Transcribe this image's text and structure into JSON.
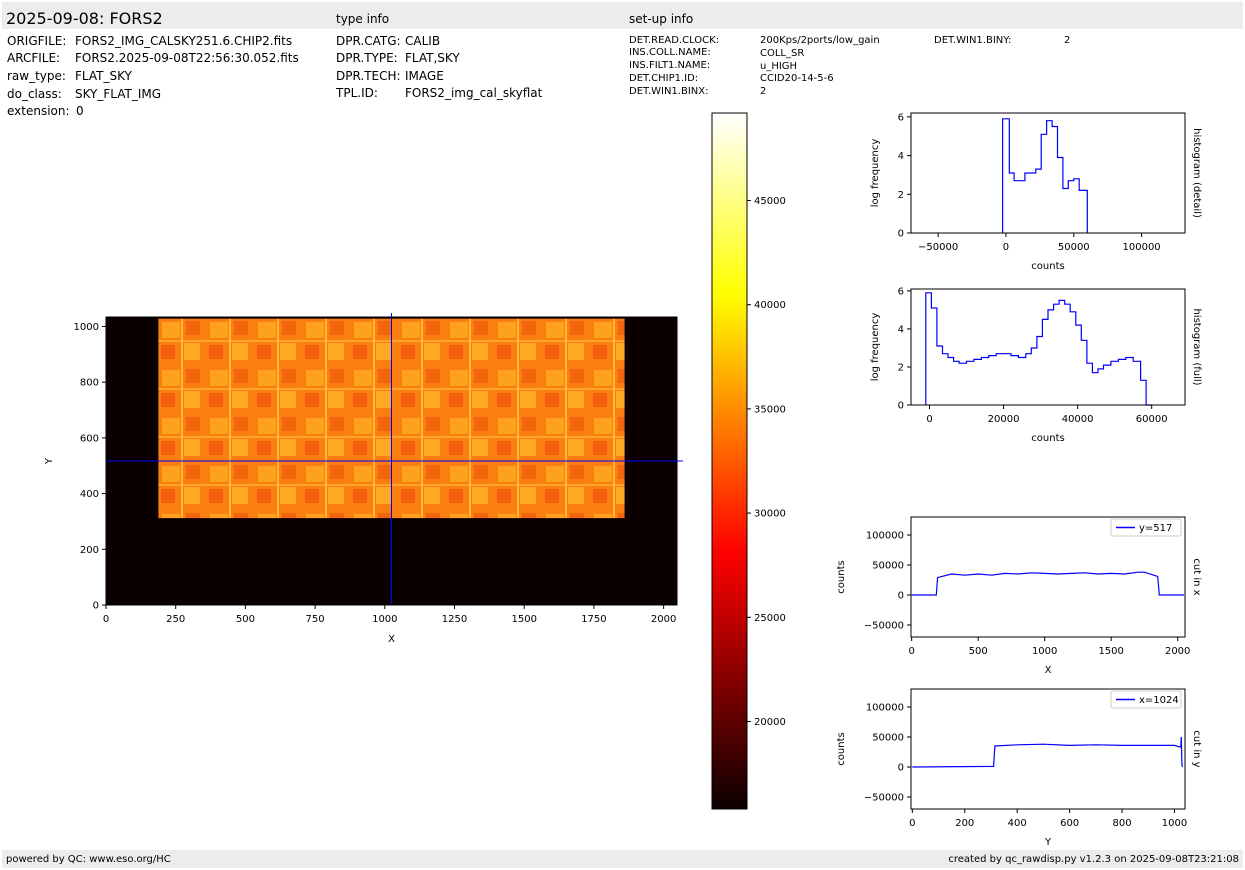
{
  "header": {
    "title": "2025-09-08: FORS2",
    "type_info_label": "type info",
    "setup_info_label": "set-up info"
  },
  "file_info": [
    {
      "key": "ORIGFILE:",
      "value": "FORS2_IMG_CALSKY251.6.CHIP2.fits"
    },
    {
      "key": "ARCFILE:",
      "value": "FORS2.2025-09-08T22:56:30.052.fits"
    },
    {
      "key": "raw_type:",
      "value": "FLAT_SKY"
    },
    {
      "key": "do_class:",
      "value": "SKY_FLAT_IMG"
    },
    {
      "key": "extension:",
      "value": "0"
    }
  ],
  "type_info": [
    {
      "key": "DPR.CATG:",
      "value": "CALIB"
    },
    {
      "key": "DPR.TYPE:",
      "value": "FLAT,SKY"
    },
    {
      "key": "DPR.TECH:",
      "value": "IMAGE"
    },
    {
      "key": "TPL.ID:",
      "value": "FORS2_img_cal_skyflat"
    }
  ],
  "setup_info": [
    {
      "key": "DET.READ.CLOCK:",
      "value": "200Kps/2ports/low_gain"
    },
    {
      "key": "INS.COLL.NAME:",
      "value": "COLL_SR"
    },
    {
      "key": "INS.FILT1.NAME:",
      "value": "u_HIGH"
    },
    {
      "key": "DET.CHIP1.ID:",
      "value": "CCID20-14-5-6"
    },
    {
      "key": "DET.WIN1.BINX:",
      "value": "2"
    }
  ],
  "setup_info_extra": {
    "key": "DET.WIN1.BINY:",
    "value": "2"
  },
  "footer": {
    "left": "powered by QC: www.eso.org/HC",
    "right": "created by qc_rawdisp.py v1.2.3 on 2025-09-08T23:21:08"
  },
  "chart_data": [
    {
      "type": "heatmap",
      "xlabel": "X",
      "ylabel": "Y",
      "xlim": [
        0,
        2048
      ],
      "ylim": [
        0,
        1034
      ],
      "xticks": [
        0,
        250,
        500,
        750,
        1000,
        1250,
        1500,
        1750,
        2000
      ],
      "yticks": [
        0,
        200,
        400,
        600,
        800,
        1000
      ],
      "illuminated_region": {
        "x": [
          188,
          1860
        ],
        "y": [
          312,
          1028
        ]
      },
      "illuminated_level": 36000,
      "background_level": 0,
      "crosshair": {
        "x": 1024,
        "y": 517
      },
      "colormap": "hot",
      "colorbar": {
        "range": [
          15800,
          49200
        ],
        "ticks": [
          20000,
          25000,
          30000,
          35000,
          40000,
          45000
        ]
      }
    },
    {
      "type": "line",
      "title": "histogram (detail)",
      "xlabel": "counts",
      "ylabel": "log frequency",
      "xlim": [
        -70000,
        132000
      ],
      "ylim": [
        0,
        6.2
      ],
      "xticks": [
        -50000,
        0,
        50000,
        100000
      ],
      "xtick_labels": [
        "−50000",
        "0",
        "50000",
        "100000"
      ],
      "yticks": [
        0,
        2,
        4,
        6
      ],
      "series": [
        {
          "x": [
            -2500,
            -2500,
            2500,
            2500,
            6000,
            6000,
            14000,
            14000,
            22000,
            22000,
            26000,
            26000,
            30000,
            30000,
            34000,
            34000,
            38000,
            38000,
            42000,
            42000,
            46000,
            46000,
            50000,
            50000,
            54000,
            54000,
            60000,
            60000
          ],
          "y": [
            0,
            5.9,
            5.9,
            3.1,
            3.1,
            2.7,
            2.7,
            3.1,
            3.1,
            3.3,
            3.3,
            5.1,
            5.1,
            5.8,
            5.8,
            5.5,
            5.5,
            3.9,
            3.9,
            2.3,
            2.3,
            2.7,
            2.7,
            2.8,
            2.8,
            2.2,
            2.2,
            0
          ]
        }
      ]
    },
    {
      "type": "line",
      "title": "histogram (full)",
      "xlabel": "counts",
      "ylabel": "log frequency",
      "xlim": [
        -5000,
        69000
      ],
      "ylim": [
        0,
        6.1
      ],
      "xticks": [
        0,
        20000,
        40000,
        60000
      ],
      "yticks": [
        0,
        2,
        4,
        6
      ],
      "series": [
        {
          "x": [
            -1000,
            -1000,
            500,
            500,
            2000,
            2000,
            3500,
            3500,
            5000,
            5000,
            6500,
            6500,
            8000,
            8000,
            10000,
            10000,
            12000,
            12000,
            14000,
            14000,
            16000,
            16000,
            18000,
            18000,
            22000,
            22000,
            24000,
            24000,
            26000,
            26000,
            27500,
            27500,
            29000,
            29000,
            30500,
            30500,
            32000,
            32000,
            33500,
            33500,
            35000,
            35000,
            36500,
            36500,
            38000,
            38000,
            39500,
            39500,
            41000,
            41000,
            42500,
            42500,
            44000,
            44000,
            45500,
            45500,
            47000,
            47000,
            49000,
            49000,
            51000,
            51000,
            53000,
            53000,
            55000,
            55000,
            57000,
            57000,
            58500,
            58500,
            60000,
            60000
          ],
          "y": [
            0,
            5.9,
            5.9,
            5.1,
            5.1,
            3.1,
            3.1,
            2.7,
            2.7,
            2.5,
            2.5,
            2.3,
            2.3,
            2.2,
            2.2,
            2.3,
            2.3,
            2.4,
            2.4,
            2.5,
            2.5,
            2.6,
            2.6,
            2.7,
            2.7,
            2.6,
            2.6,
            2.5,
            2.5,
            2.7,
            2.7,
            3.0,
            3.0,
            3.6,
            3.6,
            4.5,
            4.5,
            5.0,
            5.0,
            5.3,
            5.3,
            5.5,
            5.5,
            5.3,
            5.3,
            4.9,
            4.9,
            4.2,
            4.2,
            3.4,
            3.4,
            2.2,
            2.2,
            1.7,
            1.7,
            1.9,
            1.9,
            2.1,
            2.1,
            2.3,
            2.3,
            2.4,
            2.4,
            2.5,
            2.5,
            2.3,
            2.3,
            1.3,
            1.3,
            0.0,
            0.0,
            0
          ]
        }
      ]
    },
    {
      "type": "line",
      "title": "cut in x",
      "xlabel": "X",
      "ylabel": "counts",
      "xlim": [
        -5,
        2055
      ],
      "ylim": [
        -70000,
        130000
      ],
      "xticks": [
        0,
        500,
        1000,
        1500,
        2000
      ],
      "yticks": [
        -50000,
        0,
        50000,
        100000
      ],
      "ytick_labels": [
        "−50000",
        "0",
        "50000",
        "100000"
      ],
      "series": [
        {
          "name": "y=517",
          "x": [
            0,
            185,
            195,
            300,
            400,
            500,
            600,
            700,
            800,
            900,
            1000,
            1100,
            1200,
            1300,
            1400,
            1500,
            1600,
            1700,
            1750,
            1850,
            1862,
            1870,
            2048
          ],
          "y": [
            0,
            0,
            29000,
            35000,
            33000,
            35000,
            33000,
            36000,
            35000,
            37000,
            36000,
            35000,
            36000,
            37000,
            35000,
            36000,
            35000,
            38000,
            38000,
            31000,
            0,
            0,
            0
          ]
        }
      ]
    },
    {
      "type": "line",
      "title": "cut in y",
      "xlabel": "Y",
      "ylabel": "counts",
      "xlim": [
        -5,
        1040
      ],
      "ylim": [
        -70000,
        130000
      ],
      "xticks": [
        0,
        200,
        400,
        600,
        800,
        1000
      ],
      "yticks": [
        -50000,
        0,
        50000,
        100000
      ],
      "ytick_labels": [
        "−50000",
        "0",
        "50000",
        "100000"
      ],
      "series": [
        {
          "name": "x=1024",
          "x": [
            0,
            310,
            315,
            400,
            500,
            600,
            700,
            800,
            900,
            1000,
            1024,
            1026,
            1028,
            1030
          ],
          "y": [
            0,
            1000,
            35000,
            37000,
            38000,
            36000,
            37000,
            36000,
            36000,
            36000,
            33000,
            50000,
            5000,
            0
          ]
        }
      ]
    }
  ]
}
